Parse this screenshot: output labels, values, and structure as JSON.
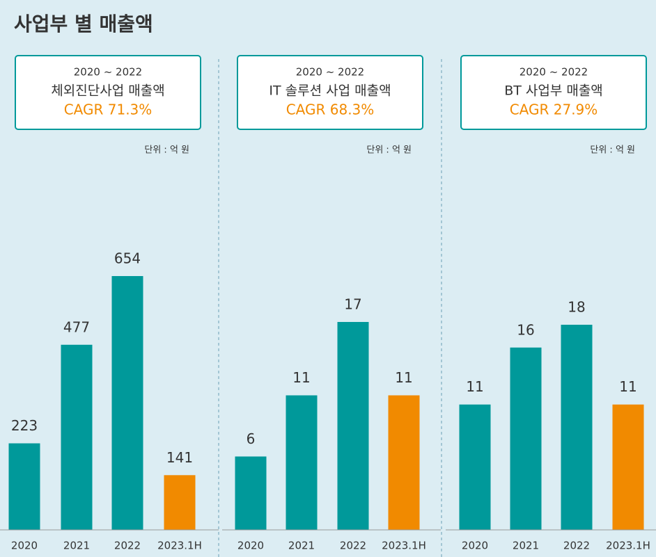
{
  "title": "사업부 별 매출액",
  "chart_data": [
    {
      "type": "bar",
      "period": "2020 ~ 2022",
      "name": "체외진단사업 매출액",
      "cagr": "CAGR 71.3%",
      "unit": "단위 : 억 원",
      "categories": [
        "2020",
        "2021",
        "2022",
        "2023.1H"
      ],
      "values": [
        223,
        477,
        654,
        141
      ],
      "colors": [
        "#00999a",
        "#00999a",
        "#00999a",
        "#f18a00"
      ]
    },
    {
      "type": "bar",
      "period": "2020 ~ 2022",
      "name": "IT 솔루션 사업 매출액",
      "cagr": "CAGR 68.3%",
      "unit": "단위 : 억 원",
      "categories": [
        "2020",
        "2021",
        "2022",
        "2023.1H"
      ],
      "values": [
        6,
        11,
        17,
        11
      ],
      "colors": [
        "#00999a",
        "#00999a",
        "#00999a",
        "#f18a00"
      ]
    },
    {
      "type": "bar",
      "period": "2020 ~ 2022",
      "name": "BT 사업부 매출액",
      "cagr": "CAGR 27.9%",
      "unit": "단위 : 억 원",
      "categories": [
        "2020",
        "2021",
        "2022",
        "2023.1H"
      ],
      "values": [
        11,
        16,
        18,
        11
      ],
      "colors": [
        "#00999a",
        "#00999a",
        "#00999a",
        "#f18a00"
      ]
    }
  ]
}
